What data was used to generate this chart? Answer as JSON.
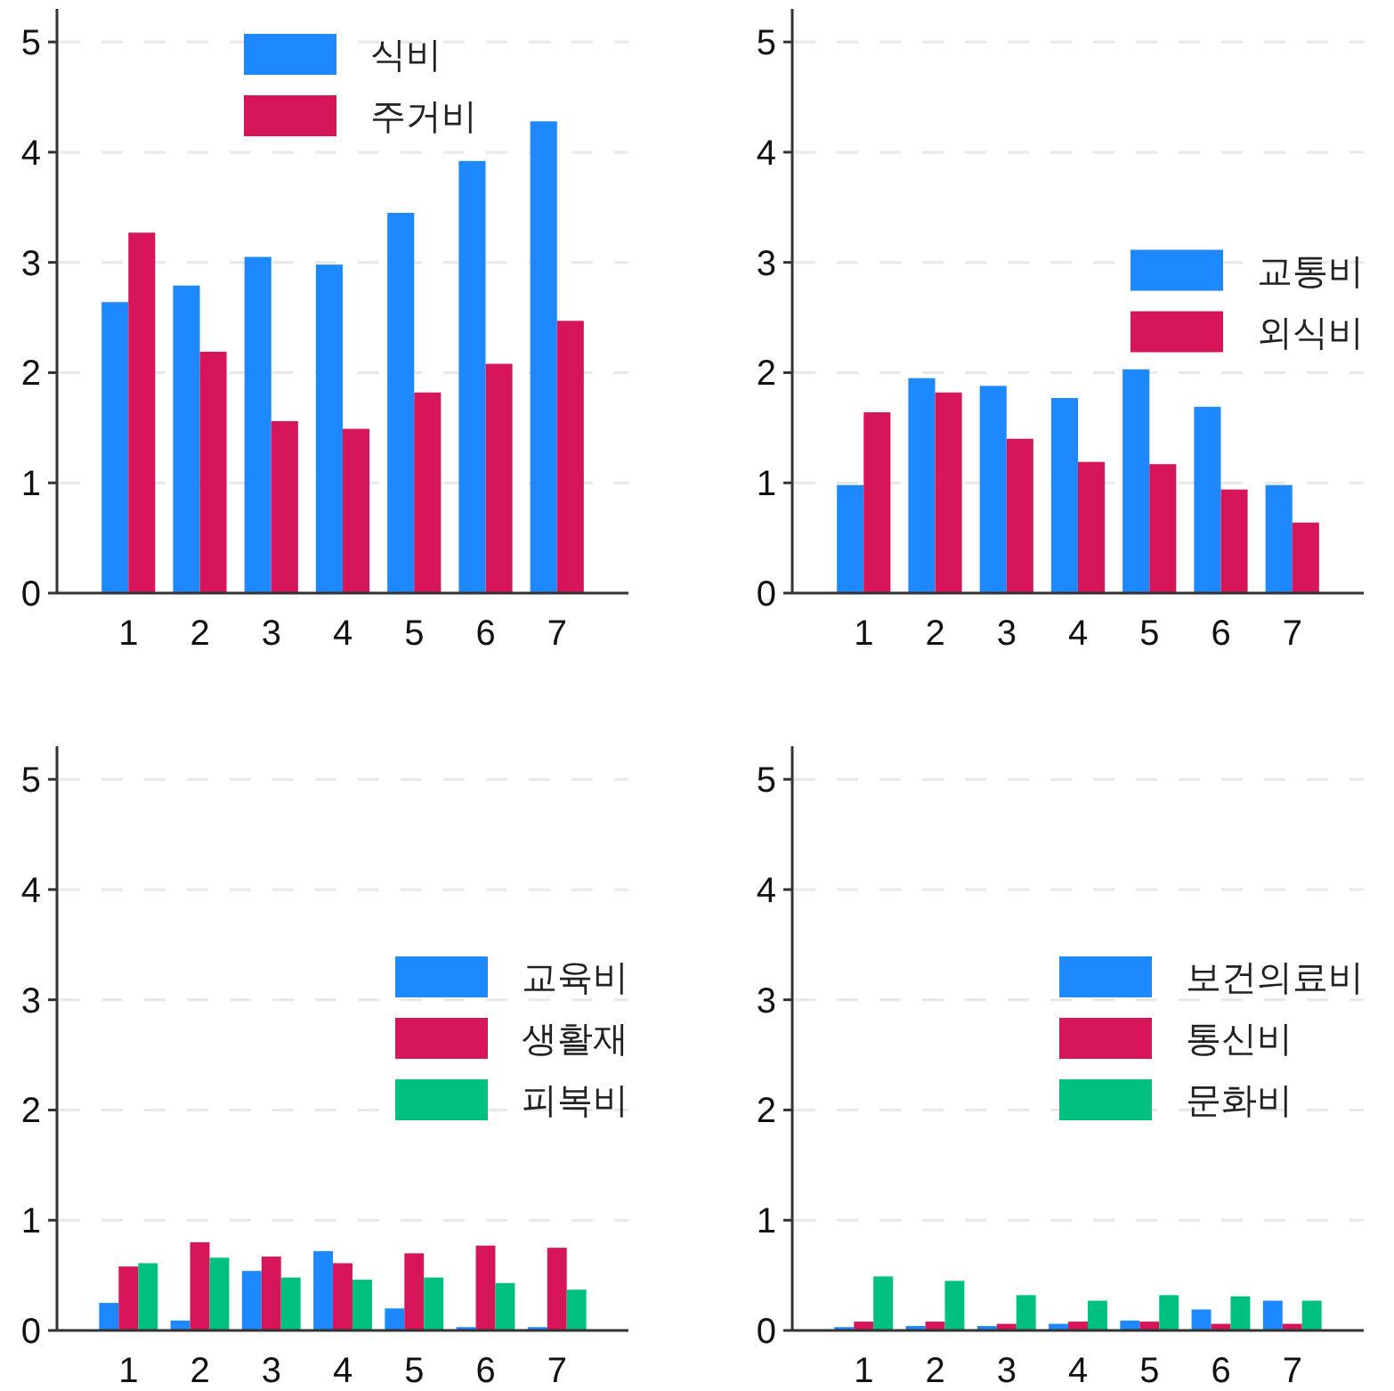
{
  "chart_data": [
    {
      "type": "bar",
      "categories": [
        "1",
        "2",
        "3",
        "4",
        "5",
        "6",
        "7"
      ],
      "ylim": [
        0,
        5.3
      ],
      "yticks": [
        0,
        1,
        2,
        3,
        4,
        5
      ],
      "grid": "y",
      "legend": "top",
      "series": [
        {
          "name": "식비",
          "color": "#1e88ff",
          "values": [
            2.64,
            2.79,
            3.05,
            2.98,
            3.45,
            3.92,
            4.28
          ]
        },
        {
          "name": "주거비",
          "color": "#d6155a",
          "values": [
            3.27,
            2.19,
            1.56,
            1.49,
            1.82,
            2.08,
            2.47
          ]
        }
      ]
    },
    {
      "type": "bar",
      "categories": [
        "1",
        "2",
        "3",
        "4",
        "5",
        "6",
        "7"
      ],
      "ylim": [
        0,
        5.3
      ],
      "yticks": [
        0,
        1,
        2,
        3,
        4,
        5
      ],
      "grid": "y",
      "legend": "right",
      "series": [
        {
          "name": "교통비",
          "color": "#1e88ff",
          "values": [
            0.98,
            1.95,
            1.88,
            1.77,
            2.03,
            1.69,
            0.98
          ]
        },
        {
          "name": "외식비",
          "color": "#d6155a",
          "values": [
            1.64,
            1.82,
            1.4,
            1.19,
            1.17,
            0.94,
            0.64
          ]
        }
      ]
    },
    {
      "type": "bar",
      "categories": [
        "1",
        "2",
        "3",
        "4",
        "5",
        "6",
        "7"
      ],
      "ylim": [
        0,
        5.3
      ],
      "yticks": [
        0,
        1,
        2,
        3,
        4,
        5
      ],
      "grid": "y",
      "legend": "right",
      "series": [
        {
          "name": "교육비",
          "color": "#1e88ff",
          "values": [
            0.25,
            0.09,
            0.54,
            0.72,
            0.2,
            0.03,
            0.03
          ]
        },
        {
          "name": "생활재",
          "color": "#d6155a",
          "values": [
            0.58,
            0.8,
            0.67,
            0.61,
            0.7,
            0.77,
            0.75
          ]
        },
        {
          "name": "피복비",
          "color": "#00c07f",
          "values": [
            0.61,
            0.66,
            0.48,
            0.46,
            0.48,
            0.43,
            0.37
          ]
        }
      ]
    },
    {
      "type": "bar",
      "categories": [
        "1",
        "2",
        "3",
        "4",
        "5",
        "6",
        "7"
      ],
      "ylim": [
        0,
        5.3
      ],
      "yticks": [
        0,
        1,
        2,
        3,
        4,
        5
      ],
      "grid": "y",
      "legend": "right",
      "series": [
        {
          "name": "보건의료비",
          "color": "#1e88ff",
          "values": [
            0.03,
            0.04,
            0.04,
            0.06,
            0.09,
            0.19,
            0.27
          ]
        },
        {
          "name": "통신비",
          "color": "#d6155a",
          "values": [
            0.08,
            0.08,
            0.06,
            0.08,
            0.08,
            0.06,
            0.06
          ]
        },
        {
          "name": "문화비",
          "color": "#00c07f",
          "values": [
            0.49,
            0.45,
            0.32,
            0.27,
            0.32,
            0.31,
            0.27
          ]
        }
      ]
    }
  ]
}
